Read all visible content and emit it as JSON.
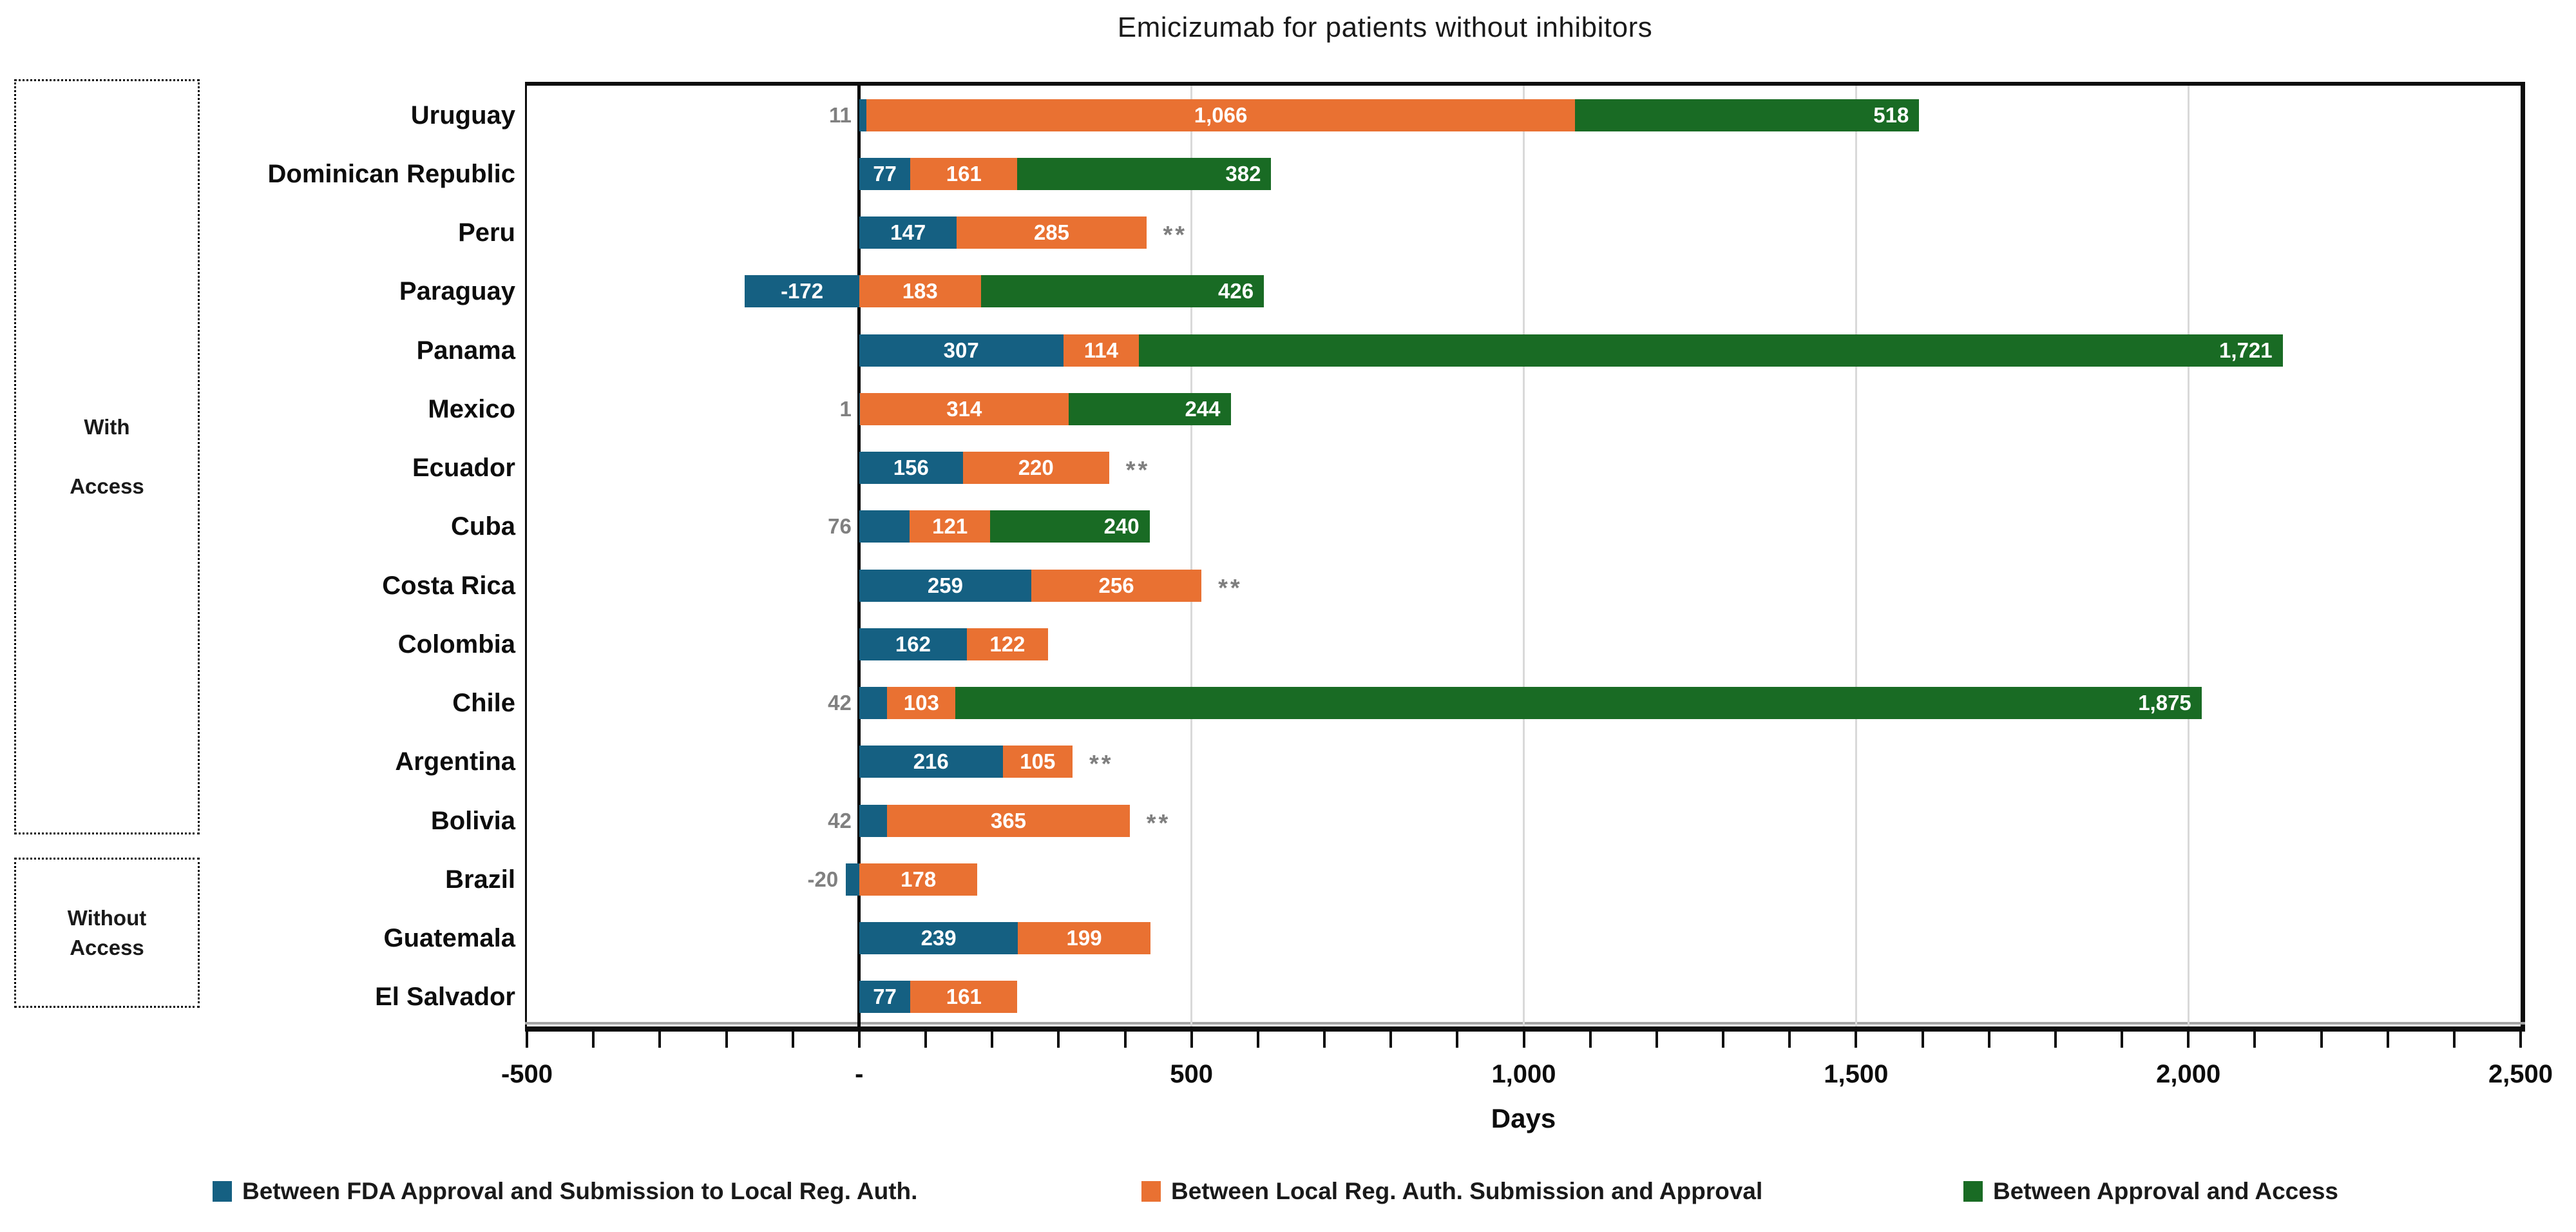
{
  "chart_data": {
    "type": "bar",
    "orientation": "horizontal-stacked",
    "title": "Emicizumab for patients without inhibitors",
    "xlabel": "Days",
    "xlim": [
      -500,
      2500
    ],
    "x_ticks": [
      {
        "value": -500,
        "label": "-500"
      },
      {
        "value": 0,
        "label": "-"
      },
      {
        "value": 500,
        "label": "500"
      },
      {
        "value": 1000,
        "label": "1,000"
      },
      {
        "value": 1500,
        "label": "1,500"
      },
      {
        "value": 2000,
        "label": "2,000"
      },
      {
        "value": 2500,
        "label": "2,500"
      }
    ],
    "minor_tick_step": 100,
    "gridlines": [
      500,
      1000,
      1500,
      2000
    ],
    "grid_on": true,
    "legend_position": "bottom",
    "footnote_marker": "**",
    "colors": {
      "series_blue": "#156082",
      "series_orange": "#E97132",
      "series_green": "#196B24",
      "label_inside": "#FFFFFF",
      "label_outside": "#808080",
      "gridline": "#D9D9D9",
      "axis": "#0D0D0D"
    },
    "series": [
      {
        "name": "Between FDA Approval and Submission to Local Reg. Auth.",
        "color": "#156082"
      },
      {
        "name": "Between Local Reg. Auth. Submission and Approval",
        "color": "#E97132"
      },
      {
        "name": "Between Approval and Access",
        "color": "#196B24"
      }
    ],
    "groups": [
      {
        "label_lines": [
          "With",
          "Access"
        ],
        "first_row": 0,
        "last_row": 12
      },
      {
        "label_lines": [
          "Without",
          "Access"
        ],
        "first_row": 13,
        "last_row": 15
      }
    ],
    "rows": [
      {
        "country": "Uruguay",
        "values": [
          11,
          1066,
          518
        ],
        "labels": [
          "11",
          "1,066",
          "518"
        ],
        "outside": [
          true,
          false,
          false
        ],
        "asterisks": false
      },
      {
        "country": "Dominican Republic",
        "values": [
          77,
          161,
          382
        ],
        "labels": [
          "77",
          "161",
          "382"
        ],
        "outside": [
          false,
          false,
          false
        ],
        "asterisks": false
      },
      {
        "country": "Peru",
        "values": [
          147,
          285,
          null
        ],
        "labels": [
          "147",
          "285",
          null
        ],
        "outside": [
          false,
          false,
          false
        ],
        "asterisks": true
      },
      {
        "country": "Paraguay",
        "values": [
          -172,
          183,
          426
        ],
        "labels": [
          "-172",
          "183",
          "426"
        ],
        "outside": [
          false,
          false,
          false
        ],
        "asterisks": false
      },
      {
        "country": "Panama",
        "values": [
          307,
          114,
          1721
        ],
        "labels": [
          "307",
          "114",
          "1,721"
        ],
        "outside": [
          false,
          false,
          false
        ],
        "asterisks": false
      },
      {
        "country": "Mexico",
        "values": [
          1,
          314,
          244
        ],
        "labels": [
          "1",
          "314",
          "244"
        ],
        "outside": [
          true,
          false,
          false
        ],
        "asterisks": false
      },
      {
        "country": "Ecuador",
        "values": [
          156,
          220,
          null
        ],
        "labels": [
          "156",
          "220",
          null
        ],
        "outside": [
          false,
          false,
          false
        ],
        "asterisks": true
      },
      {
        "country": "Cuba",
        "values": [
          76,
          121,
          240
        ],
        "labels": [
          "76",
          "121",
          "240"
        ],
        "outside": [
          true,
          false,
          false
        ],
        "asterisks": false
      },
      {
        "country": "Costa Rica",
        "values": [
          259,
          256,
          null
        ],
        "labels": [
          "259",
          "256",
          null
        ],
        "outside": [
          false,
          false,
          false
        ],
        "asterisks": true
      },
      {
        "country": "Colombia",
        "values": [
          162,
          122,
          null
        ],
        "labels": [
          "162",
          "122",
          null
        ],
        "outside": [
          false,
          false,
          false
        ],
        "asterisks": false
      },
      {
        "country": "Chile",
        "values": [
          42,
          103,
          1875
        ],
        "labels": [
          "42",
          "103",
          "1,875"
        ],
        "outside": [
          true,
          false,
          false
        ],
        "asterisks": false
      },
      {
        "country": "Argentina",
        "values": [
          216,
          105,
          null
        ],
        "labels": [
          "216",
          "105",
          null
        ],
        "outside": [
          false,
          false,
          false
        ],
        "asterisks": true
      },
      {
        "country": "Bolivia",
        "values": [
          42,
          365,
          null
        ],
        "labels": [
          "42",
          "365",
          null
        ],
        "outside": [
          true,
          false,
          false
        ],
        "asterisks": true
      },
      {
        "country": "Brazil",
        "values": [
          -20,
          178,
          null
        ],
        "labels": [
          "-20",
          "178",
          null
        ],
        "outside": [
          true,
          false,
          false
        ],
        "asterisks": false
      },
      {
        "country": "Guatemala",
        "values": [
          239,
          199,
          null
        ],
        "labels": [
          "239",
          "199",
          null
        ],
        "outside": [
          false,
          false,
          false
        ],
        "asterisks": false
      },
      {
        "country": "El Salvador",
        "values": [
          77,
          161,
          null
        ],
        "labels": [
          "77",
          "161",
          null
        ],
        "outside": [
          false,
          false,
          false
        ],
        "asterisks": false
      }
    ]
  }
}
